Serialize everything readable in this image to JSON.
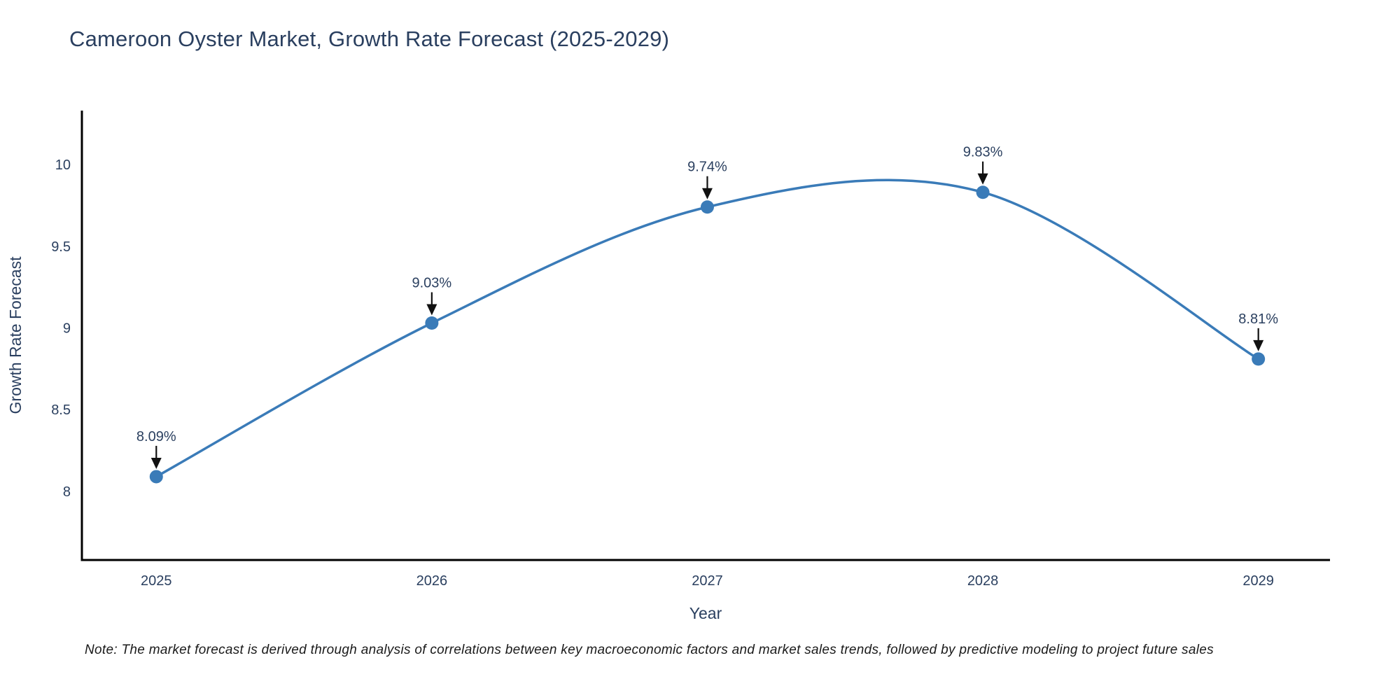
{
  "title": "Cameroon Oyster Market, Growth Rate Forecast (2025-2029)",
  "note": "Note: The market forecast is derived through analysis of correlations between key macroeconomic factors and market sales trends, followed by predictive modeling to project future sales",
  "chart_data": {
    "type": "line",
    "title": "Cameroon Oyster Market, Growth Rate Forecast (2025-2029)",
    "x": [
      2025,
      2026,
      2027,
      2028,
      2029
    ],
    "x_tick_labels": [
      "2025",
      "2026",
      "2027",
      "2028",
      "2029"
    ],
    "series": [
      {
        "name": "Growth Rate Forecast",
        "values": [
          8.09,
          9.03,
          9.74,
          9.83,
          8.81
        ]
      }
    ],
    "point_labels": [
      "8.09%",
      "9.03%",
      "9.74%",
      "9.83%",
      "8.81%"
    ],
    "xlabel": "Year",
    "ylabel": "Growth Rate Forecast",
    "y_ticks": [
      8,
      8.5,
      9,
      9.5,
      10
    ],
    "y_tick_labels": [
      "8",
      "8.5",
      "9",
      "9.5",
      "10"
    ],
    "xlim": [
      2024.73,
      2029.26
    ],
    "ylim": [
      7.58,
      10.33
    ],
    "grid": false,
    "legend": "none",
    "line_shape": "spline",
    "annotations_have_arrows": true,
    "colors": {
      "line": "#3a7bb8",
      "marker": "#3a7bb8",
      "text": "#2a3f5f",
      "axis_line": "#000000",
      "arrow": "#111111",
      "background": "#ffffff"
    }
  }
}
